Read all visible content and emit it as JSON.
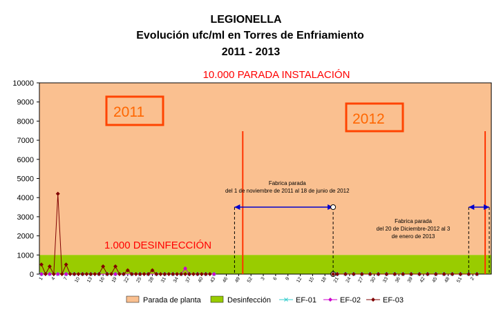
{
  "chart_data": {
    "type": "line",
    "title": [
      "LEGIONELLA",
      "Evolución ufc/ml en Torres de Enfriamiento",
      "2011 - 2013"
    ],
    "ylim": [
      0,
      10000
    ],
    "yticks": [
      0,
      1000,
      2000,
      3000,
      4000,
      5000,
      6000,
      7000,
      8000,
      9000,
      10000
    ],
    "xtick_labels": [
      "1",
      "4",
      "7",
      "10",
      "13",
      "16",
      "19",
      "22",
      "25",
      "28",
      "31",
      "34",
      "37",
      "40",
      "43",
      "46",
      "49",
      "52",
      "3",
      "6",
      "9",
      "12",
      "15",
      "18",
      "21",
      "24",
      "27",
      "30",
      "33",
      "36",
      "39",
      "42",
      "45",
      "48",
      "51",
      "2"
    ],
    "n_points": 110,
    "bands": [
      {
        "name": "Parada de planta",
        "from": 1000,
        "to": 10000,
        "color": "#fac090"
      },
      {
        "name": "Desinfección",
        "from": 0,
        "to": 1000,
        "color": "#99cc00"
      }
    ],
    "series": [
      {
        "name": "EF-01",
        "color": "#33cccc",
        "marker": "x",
        "points": [
          [
            0,
            0
          ],
          [
            2,
            0
          ],
          [
            4,
            0
          ],
          [
            6,
            0
          ],
          [
            8,
            0
          ],
          [
            10,
            0
          ],
          [
            12,
            0
          ],
          [
            14,
            0
          ],
          [
            16,
            0
          ],
          [
            18,
            0
          ],
          [
            20,
            0
          ],
          [
            22,
            0
          ],
          [
            24,
            0
          ],
          [
            26,
            0
          ],
          [
            28,
            0
          ],
          [
            30,
            0
          ],
          [
            32,
            0
          ],
          [
            34,
            0
          ],
          [
            36,
            0
          ],
          [
            38,
            0
          ],
          [
            40,
            0
          ],
          [
            42,
            0
          ],
          [
            72,
            0
          ],
          [
            74,
            0
          ],
          [
            76,
            0
          ],
          [
            78,
            0
          ],
          [
            80,
            0
          ],
          [
            82,
            0
          ],
          [
            84,
            0
          ],
          [
            86,
            0
          ],
          [
            88,
            0
          ],
          [
            90,
            0
          ],
          [
            92,
            0
          ],
          [
            94,
            0
          ],
          [
            96,
            0
          ],
          [
            98,
            0
          ],
          [
            100,
            0
          ],
          [
            102,
            0
          ],
          [
            104,
            0
          ],
          [
            106,
            0
          ]
        ]
      },
      {
        "name": "EF-02",
        "color": "#cc00cc",
        "marker": "diamond",
        "points": [
          [
            0,
            0
          ],
          [
            2,
            0
          ],
          [
            4,
            0
          ],
          [
            6,
            0
          ],
          [
            8,
            0
          ],
          [
            10,
            0
          ],
          [
            12,
            0
          ],
          [
            14,
            0
          ],
          [
            16,
            0
          ],
          [
            18,
            0
          ],
          [
            20,
            0
          ],
          [
            22,
            0
          ],
          [
            24,
            0
          ],
          [
            26,
            0
          ],
          [
            28,
            0
          ],
          [
            30,
            0
          ],
          [
            32,
            0
          ],
          [
            34,
            0
          ],
          [
            35,
            300
          ],
          [
            36,
            0
          ],
          [
            38,
            0
          ],
          [
            40,
            0
          ],
          [
            42,
            0
          ],
          [
            72,
            0
          ],
          [
            74,
            0
          ],
          [
            76,
            0
          ],
          [
            78,
            0
          ],
          [
            80,
            0
          ],
          [
            82,
            0
          ],
          [
            84,
            0
          ],
          [
            86,
            0
          ],
          [
            88,
            0
          ],
          [
            90,
            0
          ],
          [
            92,
            0
          ],
          [
            94,
            0
          ],
          [
            96,
            0
          ],
          [
            98,
            0
          ],
          [
            100,
            0
          ],
          [
            102,
            0
          ],
          [
            104,
            0
          ],
          [
            106,
            0
          ]
        ]
      },
      {
        "name": "EF-03",
        "color": "#800000",
        "marker": "diamond",
        "points": [
          [
            0,
            500
          ],
          [
            1,
            0
          ],
          [
            2,
            400
          ],
          [
            3,
            0
          ],
          [
            4,
            4200
          ],
          [
            5,
            0
          ],
          [
            6,
            500
          ],
          [
            7,
            0
          ],
          [
            8,
            0
          ],
          [
            9,
            0
          ],
          [
            10,
            0
          ],
          [
            11,
            0
          ],
          [
            12,
            0
          ],
          [
            13,
            0
          ],
          [
            14,
            0
          ],
          [
            15,
            400
          ],
          [
            16,
            0
          ],
          [
            17,
            0
          ],
          [
            18,
            400
          ],
          [
            19,
            0
          ],
          [
            20,
            0
          ],
          [
            21,
            200
          ],
          [
            22,
            0
          ],
          [
            23,
            0
          ],
          [
            24,
            0
          ],
          [
            25,
            0
          ],
          [
            26,
            0
          ],
          [
            27,
            200
          ],
          [
            28,
            0
          ],
          [
            29,
            0
          ],
          [
            30,
            0
          ],
          [
            31,
            0
          ],
          [
            32,
            0
          ],
          [
            33,
            0
          ],
          [
            34,
            0
          ],
          [
            35,
            0
          ],
          [
            36,
            0
          ],
          [
            37,
            0
          ],
          [
            38,
            0
          ],
          [
            39,
            0
          ],
          [
            40,
            0
          ],
          [
            41,
            0
          ],
          [
            71,
            0
          ],
          [
            72,
            0
          ],
          [
            74,
            0
          ],
          [
            76,
            0
          ],
          [
            78,
            0
          ],
          [
            80,
            0
          ],
          [
            82,
            0
          ],
          [
            84,
            0
          ],
          [
            86,
            0
          ],
          [
            88,
            0
          ],
          [
            90,
            0
          ],
          [
            92,
            0
          ],
          [
            94,
            0
          ],
          [
            96,
            0
          ],
          [
            98,
            0
          ],
          [
            100,
            0
          ],
          [
            102,
            0
          ],
          [
            104,
            0
          ],
          [
            106,
            0
          ]
        ]
      }
    ],
    "vertical_lines": [
      49,
      108
    ],
    "stop_intervals": [
      {
        "from": 47,
        "to": 71,
        "text_lines": [
          "Fabrica parada",
          "del 1 de noviembre de 2011  al 18 de junio de 2012"
        ]
      },
      {
        "from": 104,
        "to": 109,
        "text_lines": [
          "Fabrica parada",
          "del 20 de Diciembre-2012 al 3",
          "de enero de 2013"
        ]
      }
    ],
    "annotations": {
      "top": "10.000 PARADA INSTALACIÓN",
      "desinfeccion": "1.000 DESINFECCIÓN",
      "year_2011": "2011",
      "year_2012": "2012"
    },
    "legend": [
      "Parada de planta",
      "Desinfección",
      "EF-01",
      "EF-02",
      "EF-03"
    ],
    "legend_position": "bottom"
  }
}
